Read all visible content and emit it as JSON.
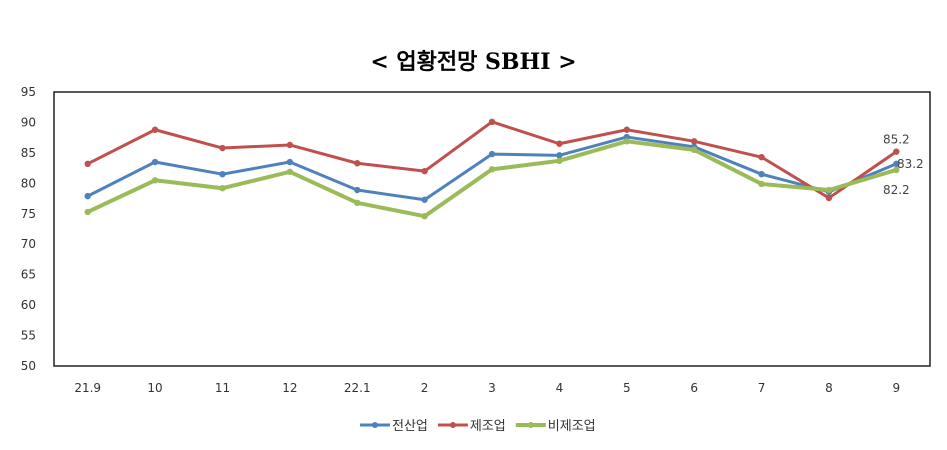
{
  "chart_data": {
    "type": "line",
    "title": "< 업황전망 SBHI >",
    "categories": [
      "21.9",
      "10",
      "11",
      "12",
      "22.1",
      "2",
      "3",
      "4",
      "5",
      "6",
      "7",
      "8",
      "9"
    ],
    "ylim": [
      50,
      95
    ],
    "yticks": [
      50,
      55,
      60,
      65,
      70,
      75,
      80,
      85,
      90,
      95
    ],
    "grid": false,
    "legend": "bottom",
    "series": [
      {
        "name": "전산업",
        "color": "#4f81bd",
        "width": 3,
        "values": [
          77.9,
          83.5,
          81.5,
          83.5,
          78.9,
          77.3,
          84.8,
          84.6,
          87.6,
          86.0,
          81.5,
          78.6,
          83.2
        ]
      },
      {
        "name": "제조업",
        "color": "#c0504d",
        "width": 3,
        "values": [
          83.2,
          88.8,
          85.8,
          86.3,
          83.3,
          82.0,
          90.1,
          86.5,
          88.8,
          86.9,
          84.3,
          77.6,
          85.2
        ]
      },
      {
        "name": "비제조업",
        "color": "#9bbb59",
        "width": 4,
        "values": [
          75.3,
          80.5,
          79.2,
          81.9,
          76.8,
          74.6,
          82.3,
          83.7,
          86.9,
          85.5,
          79.9,
          78.9,
          82.2
        ]
      }
    ],
    "data_labels": [
      {
        "series": "제조업",
        "category": "9",
        "text": "85.2"
      },
      {
        "series": "전산업",
        "category": "9",
        "text": "83.2"
      },
      {
        "series": "비제조업",
        "category": "9",
        "text": "82.2"
      }
    ]
  }
}
